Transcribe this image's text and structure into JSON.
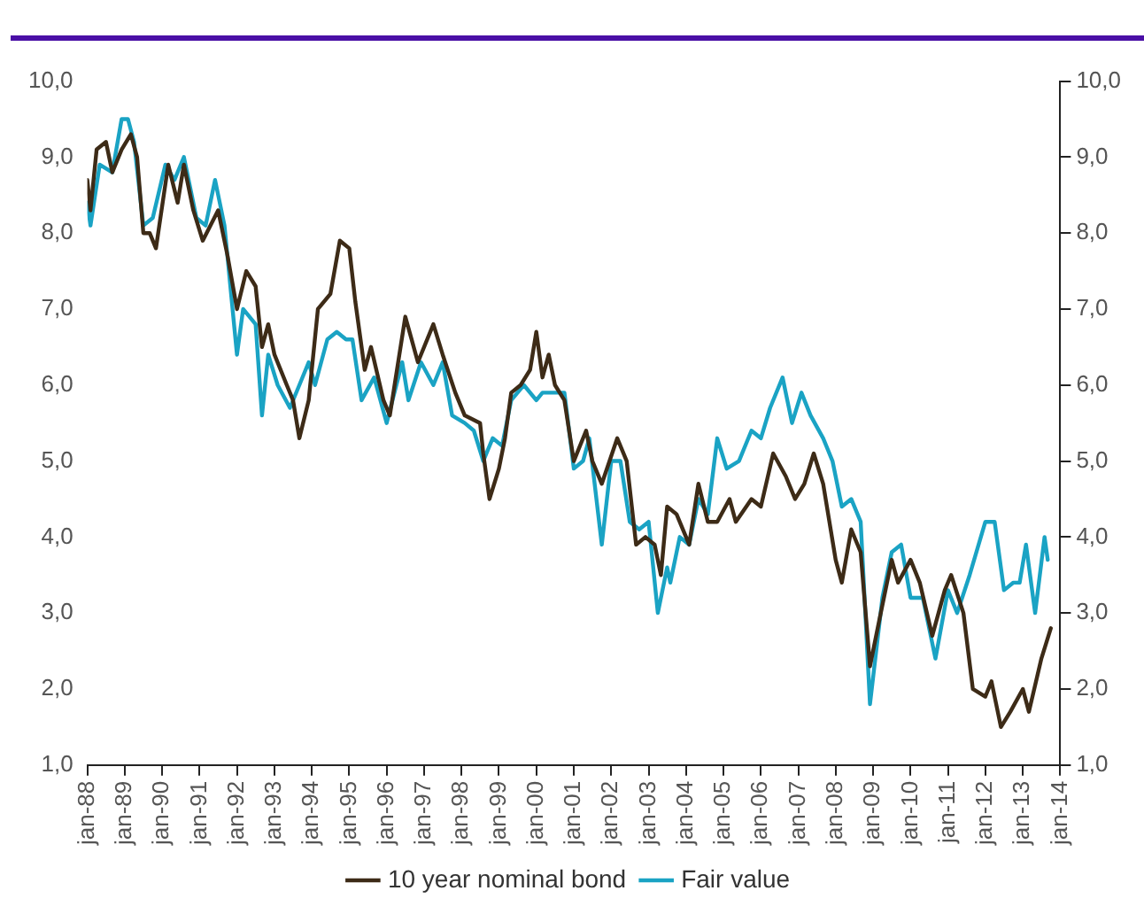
{
  "chart_data": {
    "type": "line",
    "xlim": [
      "1988-01",
      "2014-01"
    ],
    "xticks": [
      {
        "value": "1988-01",
        "label": "jan-88"
      },
      {
        "value": "1989-01",
        "label": "jan-89"
      },
      {
        "value": "1990-01",
        "label": "jan-90"
      },
      {
        "value": "1991-01",
        "label": "jan-91"
      },
      {
        "value": "1992-01",
        "label": "jan-92"
      },
      {
        "value": "1993-01",
        "label": "jan-93"
      },
      {
        "value": "1994-01",
        "label": "jan-94"
      },
      {
        "value": "1995-01",
        "label": "jan-95"
      },
      {
        "value": "1996-01",
        "label": "jan-96"
      },
      {
        "value": "1997-01",
        "label": "jan-97"
      },
      {
        "value": "1998-01",
        "label": "jan-98"
      },
      {
        "value": "1999-01",
        "label": "jan-99"
      },
      {
        "value": "2000-01",
        "label": "jan-00"
      },
      {
        "value": "2001-01",
        "label": "jan-01"
      },
      {
        "value": "2002-01",
        "label": "jan-02"
      },
      {
        "value": "2003-01",
        "label": "jan-03"
      },
      {
        "value": "2004-01",
        "label": "jan-04"
      },
      {
        "value": "2005-01",
        "label": "jan-05"
      },
      {
        "value": "2006-01",
        "label": "jan-06"
      },
      {
        "value": "2007-01",
        "label": "jan-07"
      },
      {
        "value": "2008-01",
        "label": "jan-08"
      },
      {
        "value": "2009-01",
        "label": "jan-09"
      },
      {
        "value": "2010-01",
        "label": "jan-10"
      },
      {
        "value": "2011-01",
        "label": "jan-11"
      },
      {
        "value": "2012-01",
        "label": "jan-12"
      },
      {
        "value": "2013-01",
        "label": "jan-13"
      },
      {
        "value": "2014-01",
        "label": "jan-14"
      }
    ],
    "ylim": [
      1,
      10
    ],
    "yticks": [
      {
        "value": 1,
        "label": "1,0"
      },
      {
        "value": 2,
        "label": "2,0"
      },
      {
        "value": 3,
        "label": "3,0"
      },
      {
        "value": 4,
        "label": "4,0"
      },
      {
        "value": 5,
        "label": "5,0"
      },
      {
        "value": 6,
        "label": "6,0"
      },
      {
        "value": 7,
        "label": "7,0"
      },
      {
        "value": 8,
        "label": "8,0"
      },
      {
        "value": 9,
        "label": "9,0"
      },
      {
        "value": 10,
        "label": "10,0"
      }
    ],
    "y2lim": [
      1,
      10
    ],
    "y2ticks": [
      {
        "value": 1,
        "label": "1,0"
      },
      {
        "value": 2,
        "label": "2,0"
      },
      {
        "value": 3,
        "label": "3,0"
      },
      {
        "value": 4,
        "label": "4,0"
      },
      {
        "value": 5,
        "label": "5,0"
      },
      {
        "value": 6,
        "label": "6,0"
      },
      {
        "value": 7,
        "label": "7,0"
      },
      {
        "value": 8,
        "label": "8,0"
      },
      {
        "value": 9,
        "label": "9,0"
      },
      {
        "value": 10,
        "label": "10,0"
      }
    ],
    "grid": false,
    "legend": "bottom",
    "marker": "none",
    "line_style": "solid",
    "series": [
      {
        "name": "10 year nominal bond",
        "color": "#3d2b17",
        "x": [
          "1988-01",
          "1988-02",
          "1988-04",
          "1988-07",
          "1988-09",
          "1988-12",
          "1989-03",
          "1989-05",
          "1989-07",
          "1989-09",
          "1989-11",
          "1990-03",
          "1990-06",
          "1990-08",
          "1990-11",
          "1991-02",
          "1991-07",
          "1991-10",
          "1992-01",
          "1992-04",
          "1992-07",
          "1992-09",
          "1992-11",
          "1993-01",
          "1993-05",
          "1993-07",
          "1993-09",
          "1993-12",
          "1994-03",
          "1994-07",
          "1994-10",
          "1995-01",
          "1995-03",
          "1995-06",
          "1995-08",
          "1995-12",
          "1996-02",
          "1996-07",
          "1996-09",
          "1996-11",
          "1997-04",
          "1997-07",
          "1997-11",
          "1998-02",
          "1998-07",
          "1998-08",
          "1998-10",
          "1999-01",
          "1999-03",
          "1999-05",
          "1999-08",
          "1999-11",
          "2000-01",
          "2000-03",
          "2000-05",
          "2000-07",
          "2000-10",
          "2001-01",
          "2001-05",
          "2001-07",
          "2001-10",
          "2002-03",
          "2002-06",
          "2002-09",
          "2002-12",
          "2003-03",
          "2003-05",
          "2003-07",
          "2003-10",
          "2004-02",
          "2004-05",
          "2004-08",
          "2004-11",
          "2005-03",
          "2005-05",
          "2005-10",
          "2006-01",
          "2006-05",
          "2006-09",
          "2006-12",
          "2007-03",
          "2007-06",
          "2007-09",
          "2008-01",
          "2008-03",
          "2008-06",
          "2008-09",
          "2008-12",
          "2009-03",
          "2009-07",
          "2009-09",
          "2010-01",
          "2010-04",
          "2010-08",
          "2010-12",
          "2011-02",
          "2011-06",
          "2011-09",
          "2012-01",
          "2012-03",
          "2012-06",
          "2012-09",
          "2013-01",
          "2013-03",
          "2013-07",
          "2013-10"
        ],
        "values": [
          8.7,
          8.3,
          9.1,
          9.2,
          8.8,
          9.1,
          9.3,
          9.0,
          8.0,
          8.0,
          7.8,
          8.9,
          8.4,
          8.9,
          8.3,
          7.9,
          8.3,
          7.7,
          7.0,
          7.5,
          7.3,
          6.5,
          6.8,
          6.4,
          6.0,
          5.8,
          5.3,
          5.8,
          7.0,
          7.2,
          7.9,
          7.8,
          7.1,
          6.2,
          6.5,
          5.8,
          5.6,
          6.9,
          6.6,
          6.3,
          6.8,
          6.4,
          5.9,
          5.6,
          5.5,
          5.1,
          4.5,
          4.9,
          5.3,
          5.9,
          6.0,
          6.2,
          6.7,
          6.1,
          6.4,
          6.0,
          5.8,
          5.0,
          5.4,
          5.0,
          4.7,
          5.3,
          5.0,
          3.9,
          4.0,
          3.9,
          3.5,
          4.4,
          4.3,
          3.9,
          4.7,
          4.2,
          4.2,
          4.5,
          4.2,
          4.5,
          4.4,
          5.1,
          4.8,
          4.5,
          4.7,
          5.1,
          4.7,
          3.7,
          3.4,
          4.1,
          3.8,
          2.3,
          2.9,
          3.7,
          3.4,
          3.7,
          3.4,
          2.7,
          3.3,
          3.5,
          3.0,
          2.0,
          1.9,
          2.1,
          1.5,
          1.7,
          2.0,
          1.7,
          2.4,
          2.8
        ]
      },
      {
        "name": "Fair value",
        "color": "#1aa3c4",
        "x": [
          "1988-01",
          "1988-02",
          "1988-05",
          "1988-09",
          "1988-12",
          "1989-02",
          "1989-04",
          "1989-07",
          "1989-10",
          "1990-02",
          "1990-05",
          "1990-08",
          "1990-12",
          "1991-03",
          "1991-06",
          "1991-09",
          "1992-01",
          "1992-03",
          "1992-07",
          "1992-09",
          "1992-11",
          "1993-02",
          "1993-06",
          "1993-09",
          "1993-12",
          "1994-02",
          "1994-06",
          "1994-09",
          "1994-12",
          "1995-02",
          "1995-05",
          "1995-09",
          "1996-01",
          "1996-06",
          "1996-08",
          "1996-12",
          "1997-04",
          "1997-07",
          "1997-10",
          "1998-02",
          "1998-05",
          "1998-08",
          "1998-11",
          "1999-02",
          "1999-05",
          "1999-09",
          "2000-01",
          "2000-03",
          "2000-07",
          "2000-10",
          "2001-01",
          "2001-04",
          "2001-06",
          "2001-10",
          "2002-01",
          "2002-04",
          "2002-07",
          "2002-10",
          "2003-01",
          "2003-04",
          "2003-07",
          "2003-08",
          "2003-11",
          "2004-02",
          "2004-05",
          "2004-08",
          "2004-11",
          "2005-02",
          "2005-06",
          "2005-10",
          "2006-01",
          "2006-04",
          "2006-08",
          "2006-11",
          "2007-02",
          "2007-05",
          "2007-09",
          "2007-12",
          "2008-03",
          "2008-06",
          "2008-09",
          "2008-12",
          "2009-04",
          "2009-07",
          "2009-10",
          "2010-01",
          "2010-05",
          "2010-09",
          "2011-01",
          "2011-04",
          "2011-08",
          "2012-01",
          "2012-04",
          "2012-07",
          "2012-10",
          "2012-12",
          "2013-02",
          "2013-05",
          "2013-08",
          "2013-09"
        ],
        "values": [
          8.4,
          8.1,
          8.9,
          8.8,
          9.5,
          9.5,
          9.2,
          8.1,
          8.2,
          8.9,
          8.7,
          9.0,
          8.2,
          8.1,
          8.7,
          8.1,
          6.4,
          7.0,
          6.8,
          5.6,
          6.4,
          6.0,
          5.7,
          6.0,
          6.3,
          6.0,
          6.6,
          6.7,
          6.6,
          6.6,
          5.8,
          6.1,
          5.5,
          6.3,
          5.8,
          6.3,
          6.0,
          6.3,
          5.6,
          5.5,
          5.4,
          5.0,
          5.3,
          5.2,
          5.8,
          6.0,
          5.8,
          5.9,
          5.9,
          5.9,
          4.9,
          5.0,
          5.3,
          3.9,
          5.0,
          5.0,
          4.2,
          4.1,
          4.2,
          3.0,
          3.6,
          3.4,
          4.0,
          3.9,
          4.5,
          4.3,
          5.3,
          4.9,
          5.0,
          5.4,
          5.3,
          5.7,
          6.1,
          5.5,
          5.9,
          5.6,
          5.3,
          5.0,
          4.4,
          4.5,
          4.2,
          1.8,
          3.2,
          3.8,
          3.9,
          3.2,
          3.2,
          2.4,
          3.3,
          3.0,
          3.5,
          4.2,
          4.2,
          3.3,
          3.4,
          3.4,
          3.9,
          3.0,
          4.0,
          3.7
        ]
      }
    ]
  }
}
